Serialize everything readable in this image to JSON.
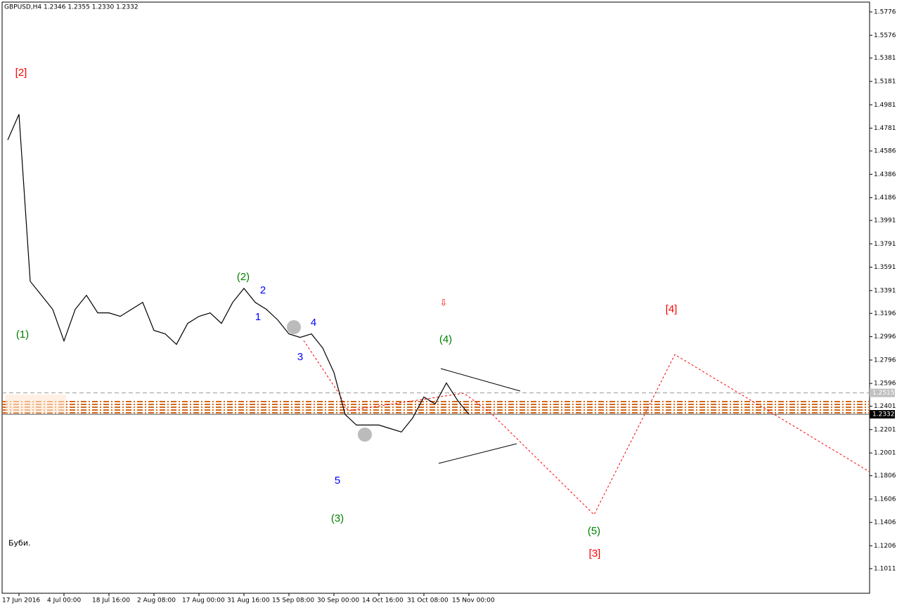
{
  "chart_data": {
    "type": "line",
    "title": "GBPUSD,H4  1.2346 1.2355 1.2330 1.2332",
    "footer": "Буби.",
    "categories": [
      null,
      "17 Jun 2016",
      null,
      null,
      null,
      "4 Jul 00:00",
      null,
      null,
      null,
      "18 Jul 16:00",
      null,
      null,
      null,
      "2 Aug 08:00",
      null,
      null,
      null,
      "17 Aug 00:00",
      null,
      null,
      null,
      "31 Aug 16:00",
      null,
      null,
      null,
      "15 Sep 08:00",
      null,
      null,
      null,
      "30 Sep 00:00",
      null,
      null,
      null,
      "14 Oct 16:00",
      null,
      null,
      null,
      "31 Oct 08:00",
      null,
      null,
      null,
      "15 Nov 00:00"
    ],
    "values": [
      1.468,
      1.49,
      1.347,
      1.335,
      1.323,
      1.296,
      1.323,
      1.335,
      1.32,
      1.32,
      1.317,
      1.323,
      1.329,
      1.305,
      1.302,
      1.293,
      1.311,
      1.317,
      1.32,
      1.311,
      1.329,
      1.341,
      1.329,
      1.323,
      1.314,
      1.302,
      1.299,
      1.302,
      1.29,
      1.269,
      1.233,
      1.224,
      1.224,
      1.224,
      1.221,
      1.218,
      1.23,
      1.248,
      1.242,
      1.26,
      1.245,
      1.2332
    ],
    "color": "#000000",
    "ylim": [
      1.08,
      1.586
    ],
    "yticks": [
      1.5776,
      1.5576,
      1.5381,
      1.5181,
      1.4981,
      1.4781,
      1.4586,
      1.4386,
      1.4186,
      1.3991,
      1.3791,
      1.3591,
      1.3391,
      1.3196,
      1.2996,
      1.2796,
      1.2596,
      1.2401,
      1.2201,
      1.2001,
      1.1806,
      1.1606,
      1.1406,
      1.1206,
      1.1011
    ],
    "level_price": 1.2515,
    "current_price": 1.2332,
    "annotations": [
      {
        "text": "[2]",
        "color": "#ff0000"
      },
      {
        "text": "(1)",
        "color": "#008000"
      },
      {
        "text": "(2)",
        "color": "#008000"
      },
      {
        "text": "2",
        "color": "#0000ff"
      },
      {
        "text": "1",
        "color": "#0000ff"
      },
      {
        "text": "4",
        "color": "#0000ff"
      },
      {
        "text": "3",
        "color": "#0000ff"
      },
      {
        "text": "5",
        "color": "#0000ff"
      },
      {
        "text": "(3)",
        "color": "#008000"
      },
      {
        "text": "(4)",
        "color": "#008000"
      },
      {
        "text": "[4]",
        "color": "#ff0000"
      },
      {
        "text": "(5)",
        "color": "#008000"
      },
      {
        "text": "[3]",
        "color": "#ff0000"
      }
    ]
  }
}
